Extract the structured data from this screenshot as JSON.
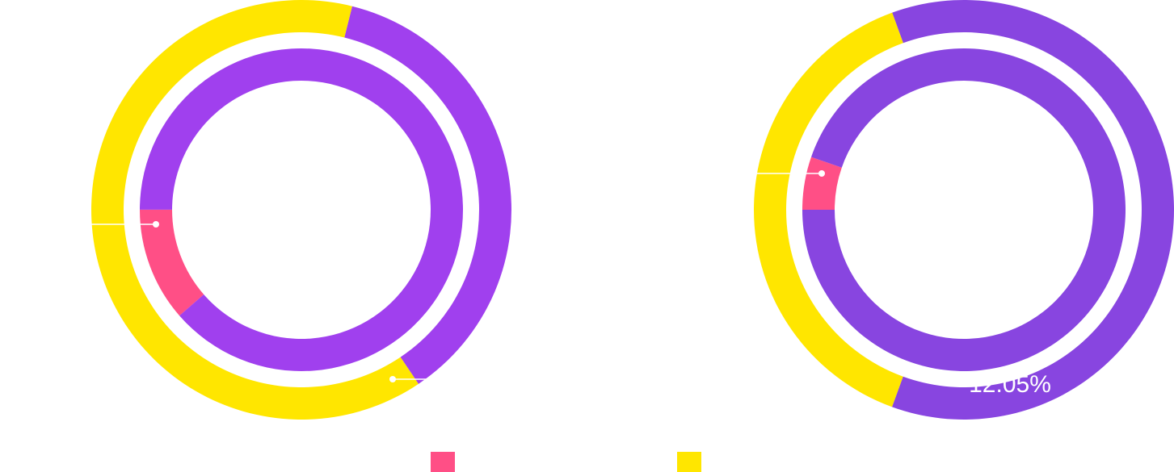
{
  "chart_data": [
    {
      "type": "donut",
      "rings": [
        {
          "values": [
            11.4,
            88.6
          ],
          "colors": [
            "#ff4f86",
            "#a040ee"
          ]
        },
        {
          "values": [
            36.7,
            63.3
          ],
          "colors": [
            "#a040ee",
            "#ffe600"
          ]
        }
      ]
    },
    {
      "type": "donut",
      "annotation": "12.05%",
      "rings": [
        {
          "values": [
            5.3,
            94.7
          ],
          "colors": [
            "#ff4f86",
            "#8845e0"
          ]
        },
        {
          "values": [
            38.9,
            61.1
          ],
          "colors": [
            "#ffe600",
            "#8845e0"
          ]
        }
      ]
    }
  ]
}
